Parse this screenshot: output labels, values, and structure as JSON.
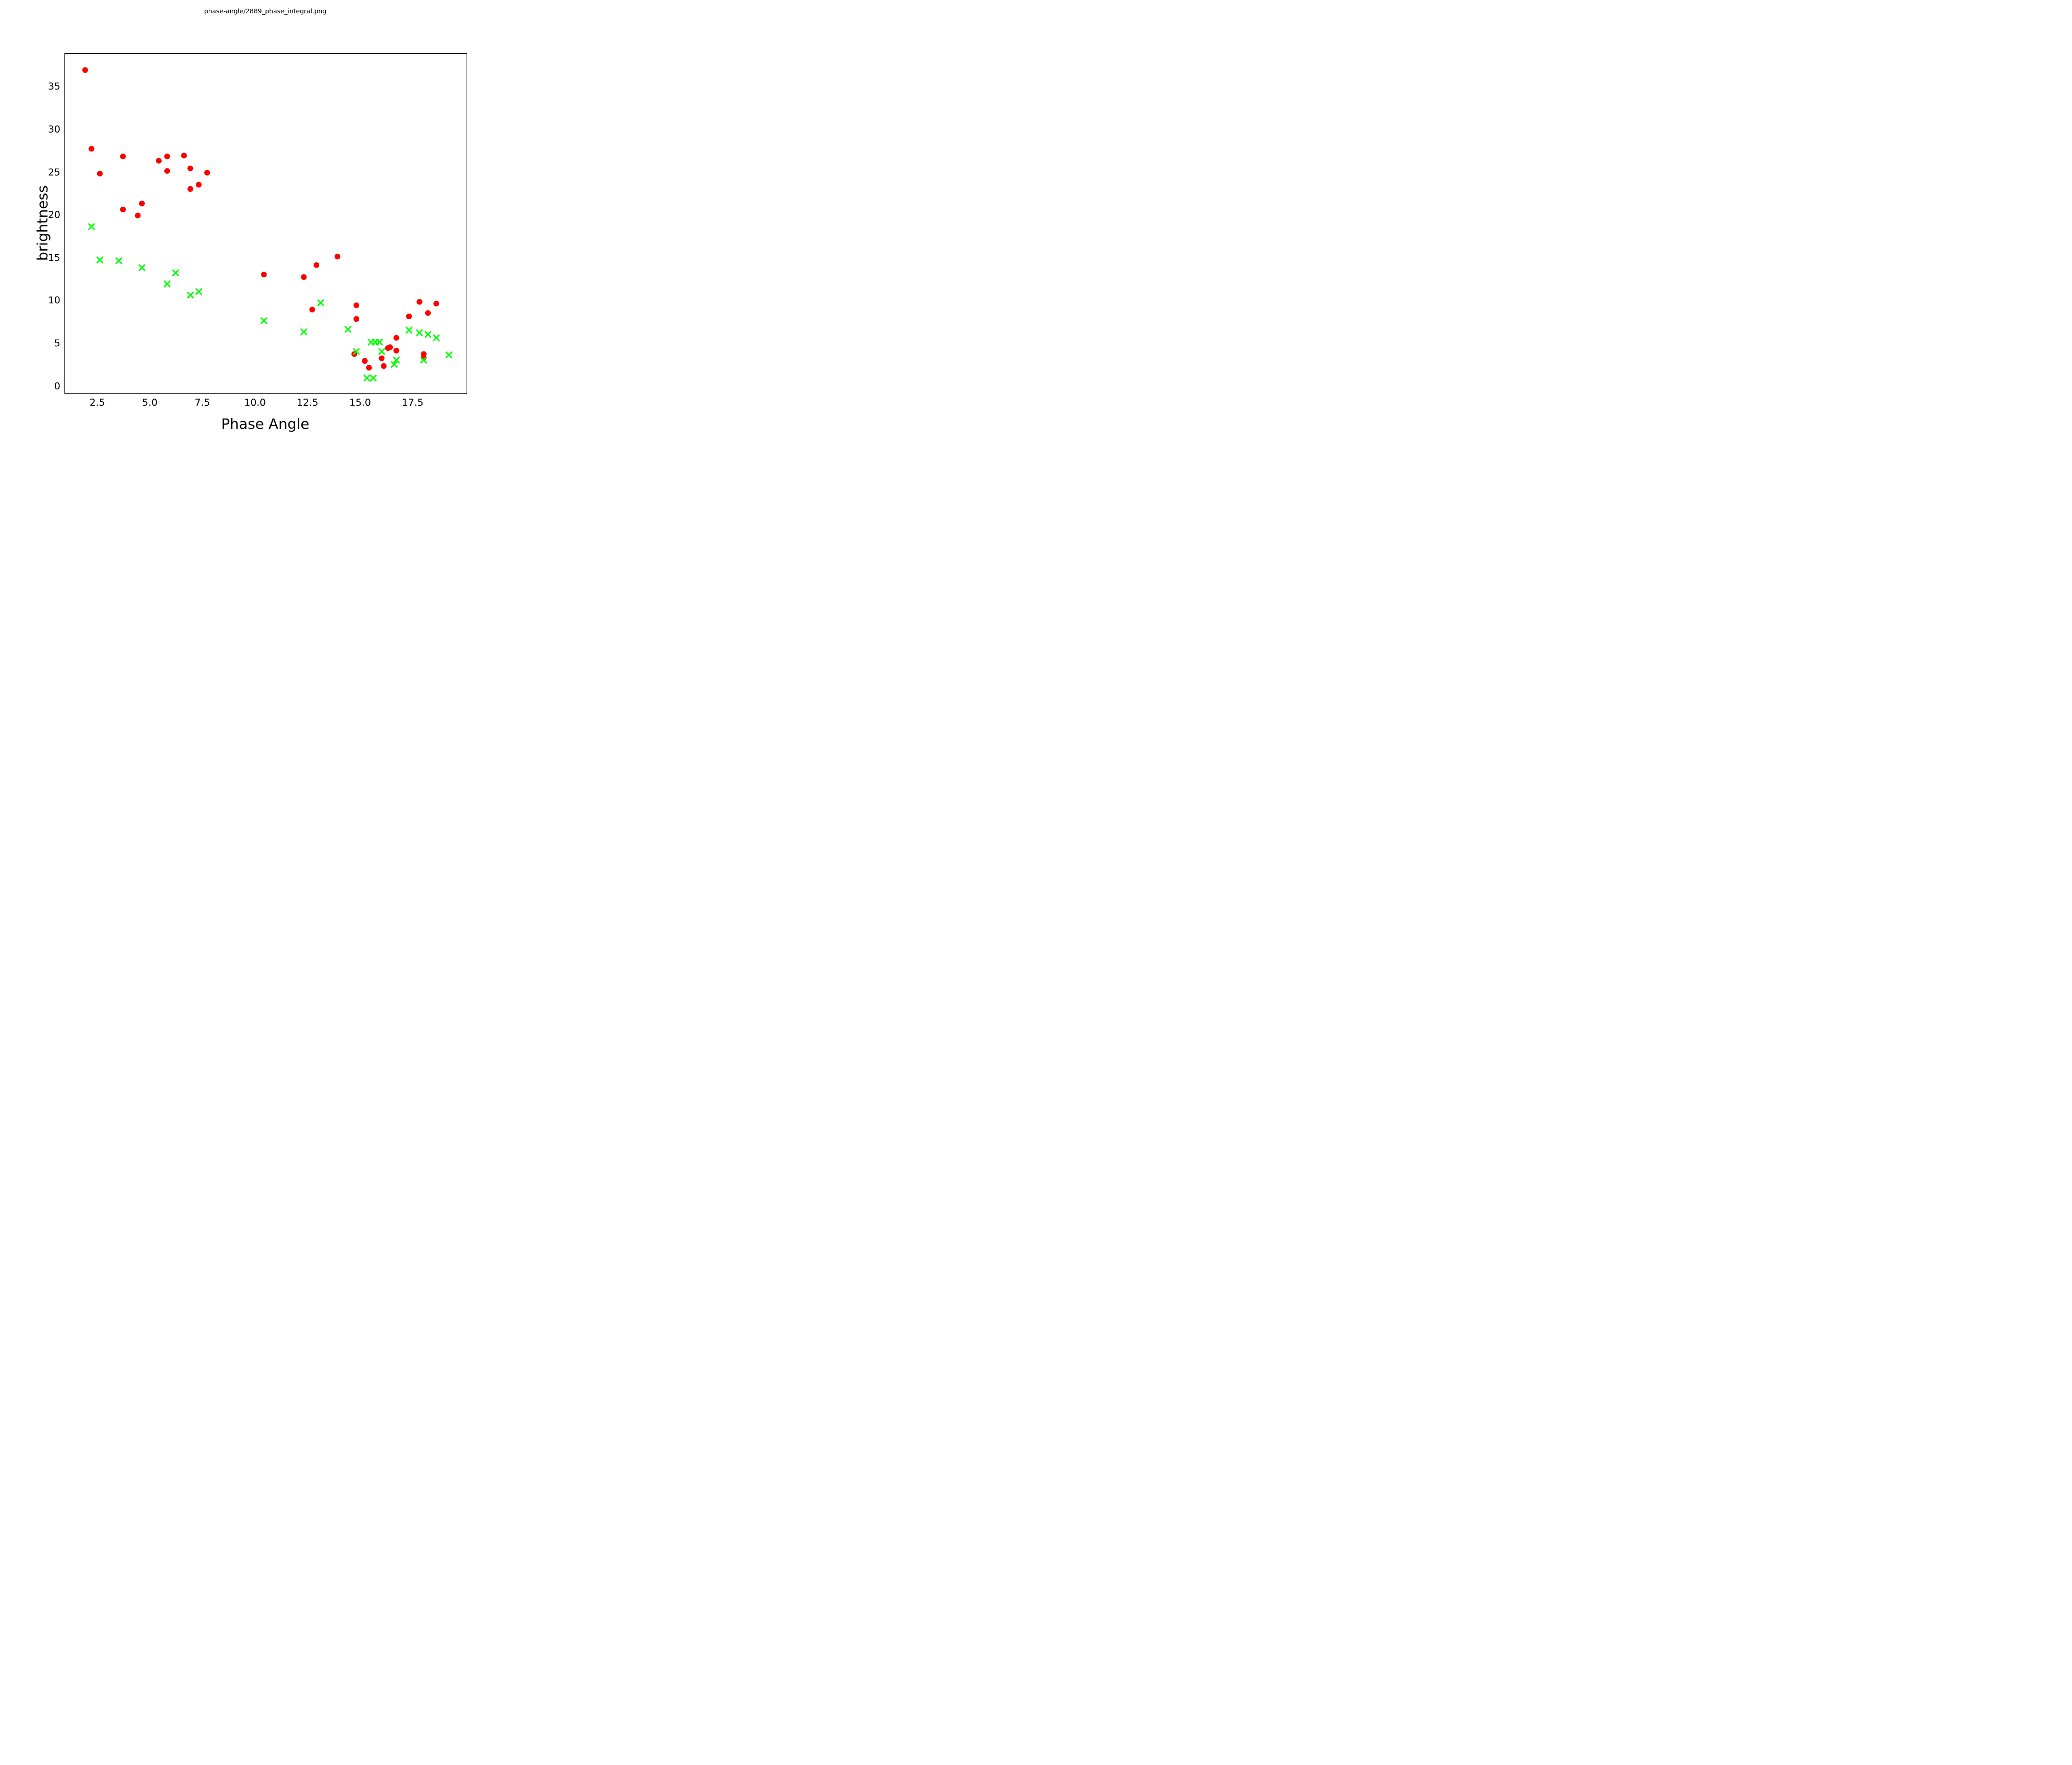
{
  "chart_data": {
    "type": "scatter",
    "title": "phase-angle/2889_phase_integral.png",
    "xlabel": "Phase Angle",
    "ylabel": "brightness",
    "xlim": [
      0.94,
      20.04
    ],
    "ylim": [
      -0.8,
      38.91
    ],
    "xticks": [
      2.5,
      5.0,
      7.5,
      10.0,
      12.5,
      15.0,
      17.5
    ],
    "xtick_labels": [
      "2.5",
      "5.0",
      "7.5",
      "10.0",
      "12.5",
      "15.0",
      "17.5"
    ],
    "yticks": [
      0,
      5,
      10,
      15,
      20,
      25,
      30,
      35
    ],
    "ytick_labels": [
      "0",
      "5",
      "10",
      "15",
      "20",
      "25",
      "30",
      "35"
    ],
    "grid": false,
    "legend_position": "none",
    "series": [
      {
        "name": "red-circles",
        "marker": "circle",
        "color": "#ff0000",
        "marker_radius_px": 5.6,
        "points": [
          [
            1.9,
            37.0
          ],
          [
            2.2,
            27.8
          ],
          [
            2.6,
            24.9
          ],
          [
            3.7,
            26.9
          ],
          [
            3.7,
            20.7
          ],
          [
            4.6,
            21.4
          ],
          [
            4.4,
            20.0
          ],
          [
            5.4,
            26.4
          ],
          [
            5.8,
            26.9
          ],
          [
            6.6,
            27.0
          ],
          [
            5.8,
            25.2
          ],
          [
            6.9,
            25.5
          ],
          [
            7.7,
            25.0
          ],
          [
            7.3,
            23.6
          ],
          [
            6.9,
            23.1
          ],
          [
            10.4,
            13.1
          ],
          [
            12.3,
            12.8
          ],
          [
            12.9,
            14.2
          ],
          [
            13.9,
            15.2
          ],
          [
            12.7,
            9.0
          ],
          [
            14.8,
            9.5
          ],
          [
            14.8,
            7.9
          ],
          [
            17.3,
            8.2
          ],
          [
            16.7,
            5.7
          ],
          [
            16.3,
            4.5
          ],
          [
            16.4,
            4.6
          ],
          [
            16.7,
            4.2
          ],
          [
            14.7,
            3.8
          ],
          [
            15.2,
            3.0
          ],
          [
            16.0,
            3.3
          ],
          [
            15.4,
            2.2
          ],
          [
            16.1,
            2.4
          ],
          [
            17.8,
            9.9
          ],
          [
            18.6,
            9.7
          ],
          [
            18.2,
            8.6
          ],
          [
            18.0,
            3.8
          ],
          [
            18.0,
            3.4
          ]
        ]
      },
      {
        "name": "green-crosses",
        "marker": "x",
        "color": "#00ff00",
        "marker_half_px": 6,
        "marker_stroke_px": 2.8,
        "points": [
          [
            2.2,
            18.7
          ],
          [
            2.6,
            14.8
          ],
          [
            3.5,
            14.7
          ],
          [
            4.6,
            13.9
          ],
          [
            6.2,
            13.3
          ],
          [
            5.8,
            12.0
          ],
          [
            6.9,
            10.7
          ],
          [
            7.3,
            11.1
          ],
          [
            10.4,
            7.7
          ],
          [
            12.3,
            6.4
          ],
          [
            13.1,
            9.8
          ],
          [
            14.4,
            6.7
          ],
          [
            15.5,
            5.2
          ],
          [
            15.7,
            5.2
          ],
          [
            15.9,
            5.2
          ],
          [
            16.0,
            4.1
          ],
          [
            14.8,
            4.1
          ],
          [
            16.7,
            3.1
          ],
          [
            16.6,
            2.6
          ],
          [
            15.3,
            1.0
          ],
          [
            15.6,
            1.0
          ],
          [
            17.3,
            6.6
          ],
          [
            17.8,
            6.3
          ],
          [
            18.2,
            6.1
          ],
          [
            18.6,
            5.7
          ],
          [
            19.2,
            3.7
          ],
          [
            18.0,
            3.1
          ]
        ]
      }
    ]
  }
}
